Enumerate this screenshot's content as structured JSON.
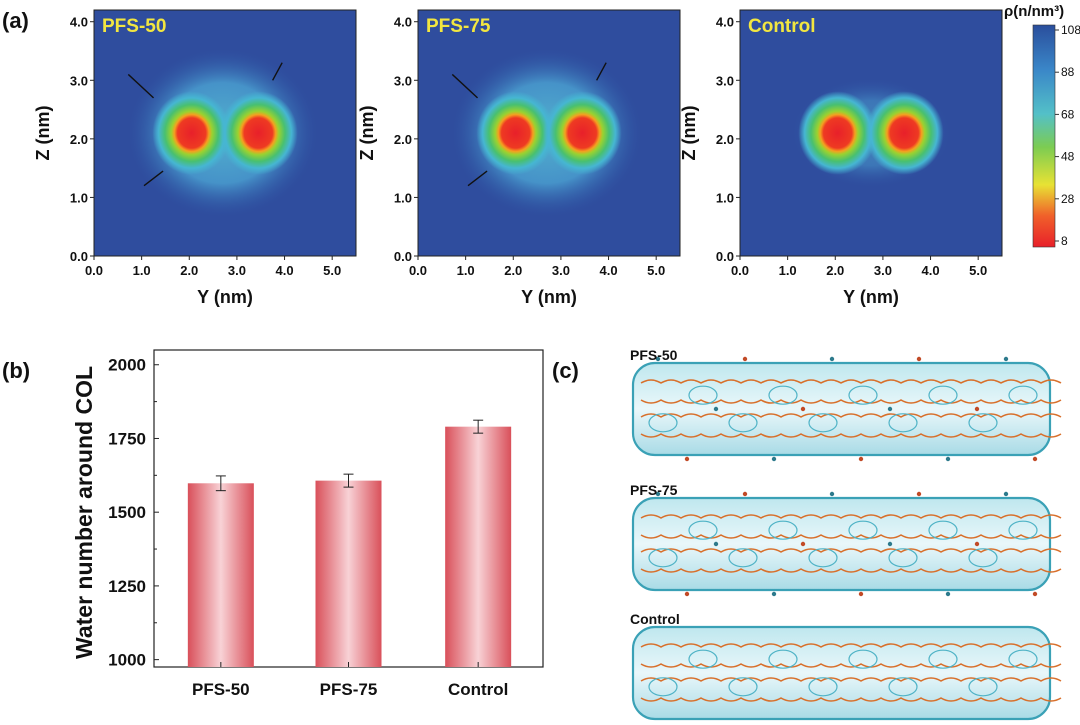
{
  "panel_labels": {
    "a": "(a)",
    "b": "(b)",
    "c": "(c)"
  },
  "colorbar": {
    "label": "ρ(n/nm³)",
    "ticks": [
      108,
      88,
      68,
      48,
      28,
      8
    ],
    "colors": [
      "#2a4e9c",
      "#3a86c8",
      "#53c0c8",
      "#7ccc52",
      "#e8e234",
      "#f0602a",
      "#e8202a"
    ]
  },
  "chart_data": [
    {
      "type": "heatmap",
      "title": "PFS-50",
      "xlabel": "Y (nm)",
      "ylabel": "Z (nm)",
      "xlim": [
        0,
        5.5
      ],
      "ylim": [
        0,
        4.2
      ],
      "xticks": [
        "0.0",
        "1.0",
        "2.0",
        "3.0",
        "4.0",
        "5.0"
      ],
      "yticks": [
        "0.0",
        "1.0",
        "2.0",
        "3.0",
        "4.0"
      ],
      "centers": [
        [
          2.05,
          2.1
        ],
        [
          3.45,
          2.1
        ]
      ],
      "extra_density": true
    },
    {
      "type": "heatmap",
      "title": "PFS-75",
      "xlabel": "Y (nm)",
      "ylabel": "Z (nm)",
      "xlim": [
        0,
        5.5
      ],
      "ylim": [
        0,
        4.2
      ],
      "xticks": [
        "0.0",
        "1.0",
        "2.0",
        "3.0",
        "4.0",
        "5.0"
      ],
      "yticks": [
        "0.0",
        "1.0",
        "2.0",
        "3.0",
        "4.0"
      ],
      "centers": [
        [
          2.05,
          2.1
        ],
        [
          3.45,
          2.1
        ]
      ],
      "extra_density": true
    },
    {
      "type": "heatmap",
      "title": "Control",
      "xlabel": "Y (nm)",
      "ylabel": "Z (nm)",
      "xlim": [
        0,
        5.5
      ],
      "ylim": [
        0,
        4.2
      ],
      "xticks": [
        "0.0",
        "1.0",
        "2.0",
        "3.0",
        "4.0",
        "5.0"
      ],
      "yticks": [
        "0.0",
        "1.0",
        "2.0",
        "3.0",
        "4.0"
      ],
      "centers": [
        [
          2.05,
          2.1
        ],
        [
          3.45,
          2.1
        ]
      ],
      "extra_density": false
    },
    {
      "type": "bar",
      "categories": [
        "PFS-50",
        "PFS-75",
        "Control"
      ],
      "values": [
        1598,
        1607,
        1790
      ],
      "errors": [
        25,
        22,
        22
      ],
      "xlabel": "",
      "ylabel": "Water number around COL",
      "ylim": [
        975,
        2050
      ],
      "yticks": [
        "1000",
        "1250",
        "1500",
        "1750",
        "2000"
      ],
      "color": "#e06068"
    }
  ],
  "panel_c": {
    "labels": [
      "PFS-50",
      "PFS-75",
      "Control"
    ]
  }
}
